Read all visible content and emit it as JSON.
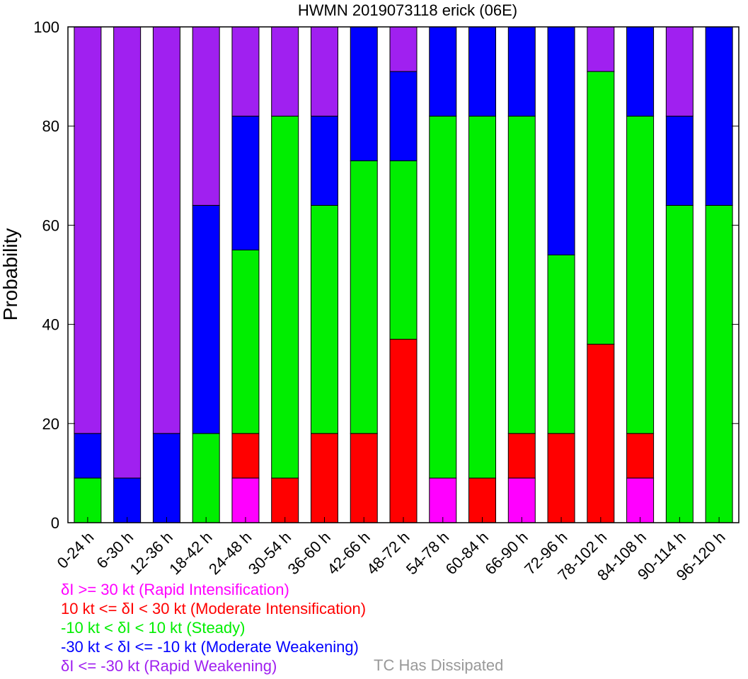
{
  "chart_data": {
    "type": "bar",
    "stacked": true,
    "title": "HWMN 2019073118 erick (06E)",
    "xlabel": "",
    "ylabel": "Probability",
    "ylim": [
      0,
      100
    ],
    "yticks": [
      "0",
      "20",
      "40",
      "60",
      "80",
      "100"
    ],
    "grid": false,
    "categories": [
      "0-24 h",
      "6-30 h",
      "12-36 h",
      "18-42 h",
      "24-48 h",
      "30-54 h",
      "36-60 h",
      "42-66 h",
      "48-72 h",
      "54-78 h",
      "60-84 h",
      "66-90 h",
      "72-96 h",
      "78-102 h",
      "84-108 h",
      "90-114 h",
      "96-120 h"
    ],
    "series": [
      {
        "name": "δI >= 30 kt (Rapid Intensification)",
        "color": "#ff00ff",
        "values": [
          0,
          0,
          0,
          0,
          9,
          0,
          0,
          0,
          0,
          9,
          0,
          9,
          0,
          0,
          9,
          0,
          0
        ]
      },
      {
        "name": "10 kt <= δI < 30 kt (Moderate Intensification)",
        "color": "#ff0000",
        "values": [
          0,
          0,
          0,
          0,
          9,
          9,
          18,
          18,
          37,
          0,
          9,
          9,
          18,
          36,
          9,
          0,
          0
        ]
      },
      {
        "name": "-10 kt < δI < 10 kt (Steady)",
        "color": "#00ee00",
        "values": [
          9,
          0,
          0,
          18,
          37,
          73,
          46,
          55,
          36,
          73,
          73,
          64,
          36,
          55,
          64,
          64,
          64
        ]
      },
      {
        "name": "-30 kt < δI <= -10 kt (Moderate Weakening)",
        "color": "#0000ff",
        "values": [
          9,
          9,
          18,
          46,
          27,
          0,
          18,
          27,
          18,
          18,
          18,
          18,
          46,
          0,
          18,
          18,
          36
        ]
      },
      {
        "name": "δI <= -30 kt (Rapid Weakening)",
        "color": "#a020f0",
        "values": [
          82,
          91,
          82,
          36,
          18,
          18,
          18,
          0,
          9,
          0,
          0,
          0,
          0,
          9,
          0,
          18,
          0
        ]
      }
    ],
    "legend_placement": "bottom-left"
  },
  "legend": {
    "items": [
      {
        "label": "δI >= 30 kt (Rapid Intensification)",
        "color": "#ff00ff"
      },
      {
        "label": "10 kt <= δI < 30 kt (Moderate Intensification)",
        "color": "#ff0000"
      },
      {
        "label": "-10 kt < δI < 10 kt (Steady)",
        "color": "#00ee00"
      },
      {
        "label": "-30 kt < δI <= -10 kt (Moderate Weakening)",
        "color": "#0000ff"
      },
      {
        "label": "δI <= -30 kt (Rapid Weakening)",
        "color": "#a020f0"
      }
    ],
    "dissipated_label": "TC Has Dissipated",
    "dissipated_color": "#999999"
  }
}
